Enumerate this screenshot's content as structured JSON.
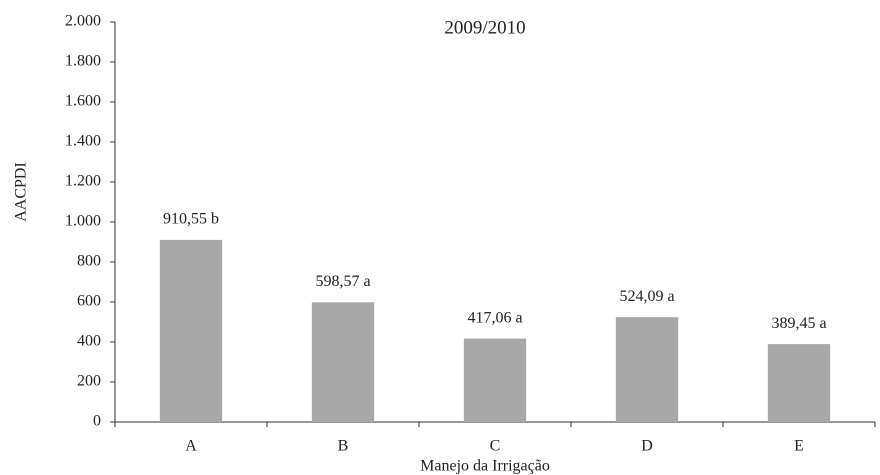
{
  "chart_data": {
    "type": "bar",
    "title": "2009/2010",
    "y_label": "AACPDI",
    "x_label": "Manejo da Irrigação",
    "categories": [
      "A",
      "B",
      "C",
      "D",
      "E"
    ],
    "values": [
      910.55,
      598.57,
      417.06,
      524.09,
      389.45
    ],
    "value_labels": [
      "910,55 b",
      "598,57 a",
      "417,06 a",
      "524,09 a",
      "389,45 a"
    ],
    "color": "#a8a8a8",
    "ylim": [
      0,
      2000
    ],
    "yticks": [
      0,
      200,
      400,
      600,
      800,
      {
        "value": 1000,
        "label": "1.000"
      },
      {
        "value": 1200,
        "label": "1.200"
      },
      {
        "value": 1400,
        "label": "1.400"
      },
      {
        "value": 1600,
        "label": "1.600"
      },
      {
        "value": 1800,
        "label": "1.800"
      },
      {
        "value": 2000,
        "label": "2.000"
      }
    ],
    "grid": false
  }
}
